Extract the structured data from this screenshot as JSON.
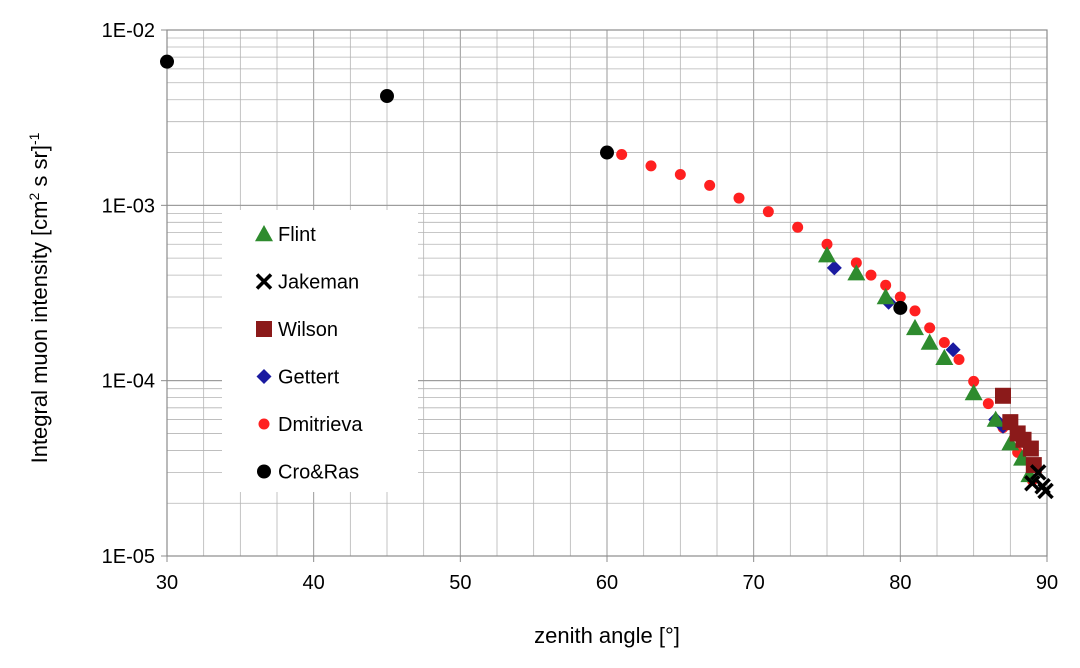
{
  "chart_data": {
    "type": "scatter",
    "title": "",
    "xlabel": "zenith angle [°]",
    "ylabel": {
      "main": "Integral muon intensity [cm",
      "sup1": "2",
      "mid": " s sr]",
      "sup2": "-1"
    },
    "xlim": [
      30,
      90
    ],
    "ylim": [
      1e-05,
      0.01
    ],
    "yscale": "log",
    "grid": true,
    "xticks": [
      30,
      40,
      50,
      60,
      70,
      80,
      90
    ],
    "xtick_labels": [
      "30",
      "40",
      "50",
      "60",
      "70",
      "80",
      "90"
    ],
    "yticks": [
      1e-05,
      0.0001,
      0.001,
      0.01
    ],
    "ytick_labels": [
      "1E-05",
      "1E-04",
      "1E-03",
      "1E-02"
    ],
    "legend_position": "left",
    "series": [
      {
        "name": "Flint",
        "marker": "triangle",
        "color": "#2e8b2e",
        "x": [
          75,
          77,
          79,
          81,
          82,
          83,
          85,
          86.5,
          87.5,
          88.3,
          88.8
        ],
        "y": [
          0.00052,
          0.00041,
          0.0003,
          0.0002,
          0.000165,
          0.000135,
          8.5e-05,
          6e-05,
          4.4e-05,
          3.6e-05,
          2.9e-05
        ]
      },
      {
        "name": "Jakeman",
        "marker": "x",
        "color": "#000000",
        "x": [
          89.0,
          89.4,
          89.7,
          89.9
        ],
        "y": [
          2.6e-05,
          3e-05,
          2.5e-05,
          2.35e-05
        ]
      },
      {
        "name": "Wilson",
        "marker": "square",
        "color": "#8b1a1a",
        "x": [
          87.0,
          87.5,
          88.0,
          88.4,
          88.9,
          89.1
        ],
        "y": [
          8.2e-05,
          5.8e-05,
          5e-05,
          4.6e-05,
          4.1e-05,
          3.3e-05
        ]
      },
      {
        "name": "Gettert",
        "marker": "diamond",
        "color": "#1a1aa0",
        "x": [
          75.5,
          79.2,
          83.6,
          86.5,
          87.0
        ],
        "y": [
          0.00044,
          0.00028,
          0.00015,
          6e-05,
          5.5e-05
        ]
      },
      {
        "name": "Dmitrieva",
        "marker": "dot",
        "color": "#ff2020",
        "x": [
          61,
          63,
          65,
          67,
          69,
          71,
          73,
          75,
          77,
          78,
          79,
          80,
          81,
          82,
          83,
          84,
          85,
          86,
          87,
          88,
          89
        ],
        "y": [
          0.00195,
          0.00168,
          0.0015,
          0.0013,
          0.0011,
          0.00092,
          0.00075,
          0.0006,
          0.00047,
          0.0004,
          0.00035,
          0.0003,
          0.00025,
          0.0002,
          0.000165,
          0.000132,
          9.9e-05,
          7.4e-05,
          5.4e-05,
          3.9e-05,
          2.7e-05
        ]
      },
      {
        "name": "Cro&Ras",
        "marker": "bigdot",
        "color": "#000000",
        "x": [
          30,
          45,
          60,
          80
        ],
        "y": [
          0.0066,
          0.0042,
          0.002,
          0.00026
        ]
      }
    ]
  }
}
